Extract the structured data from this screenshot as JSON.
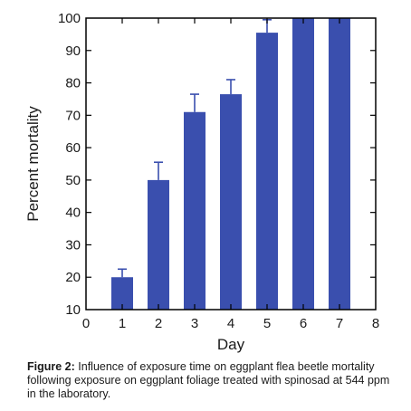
{
  "chart_data": {
    "type": "bar",
    "xlabel": "Day",
    "ylabel": "Percent mortality",
    "xlim": [
      0,
      8
    ],
    "ylim": [
      10,
      100
    ],
    "xticks": [
      "0",
      "1",
      "2",
      "3",
      "4",
      "5",
      "6",
      "7",
      "8"
    ],
    "yticks": [
      "10",
      "20",
      "30",
      "40",
      "50",
      "60",
      "70",
      "80",
      "90",
      "100"
    ],
    "categories": [
      "1",
      "2",
      "3",
      "4",
      "5",
      "6",
      "7"
    ],
    "values": [
      20,
      50,
      71,
      76.5,
      95.5,
      100,
      100
    ],
    "error_upper": [
      22.5,
      55.5,
      76.5,
      81,
      99.5,
      100,
      100
    ],
    "grid": false,
    "bar_color": "#3a4fae",
    "frame_color": "#000000"
  },
  "caption": {
    "label": "Figure 2:",
    "text": " Influence of exposure time on eggplant flea beetle mortality following exposure on eggplant foliage treated with spinosad at 544 ppm in the laboratory."
  }
}
